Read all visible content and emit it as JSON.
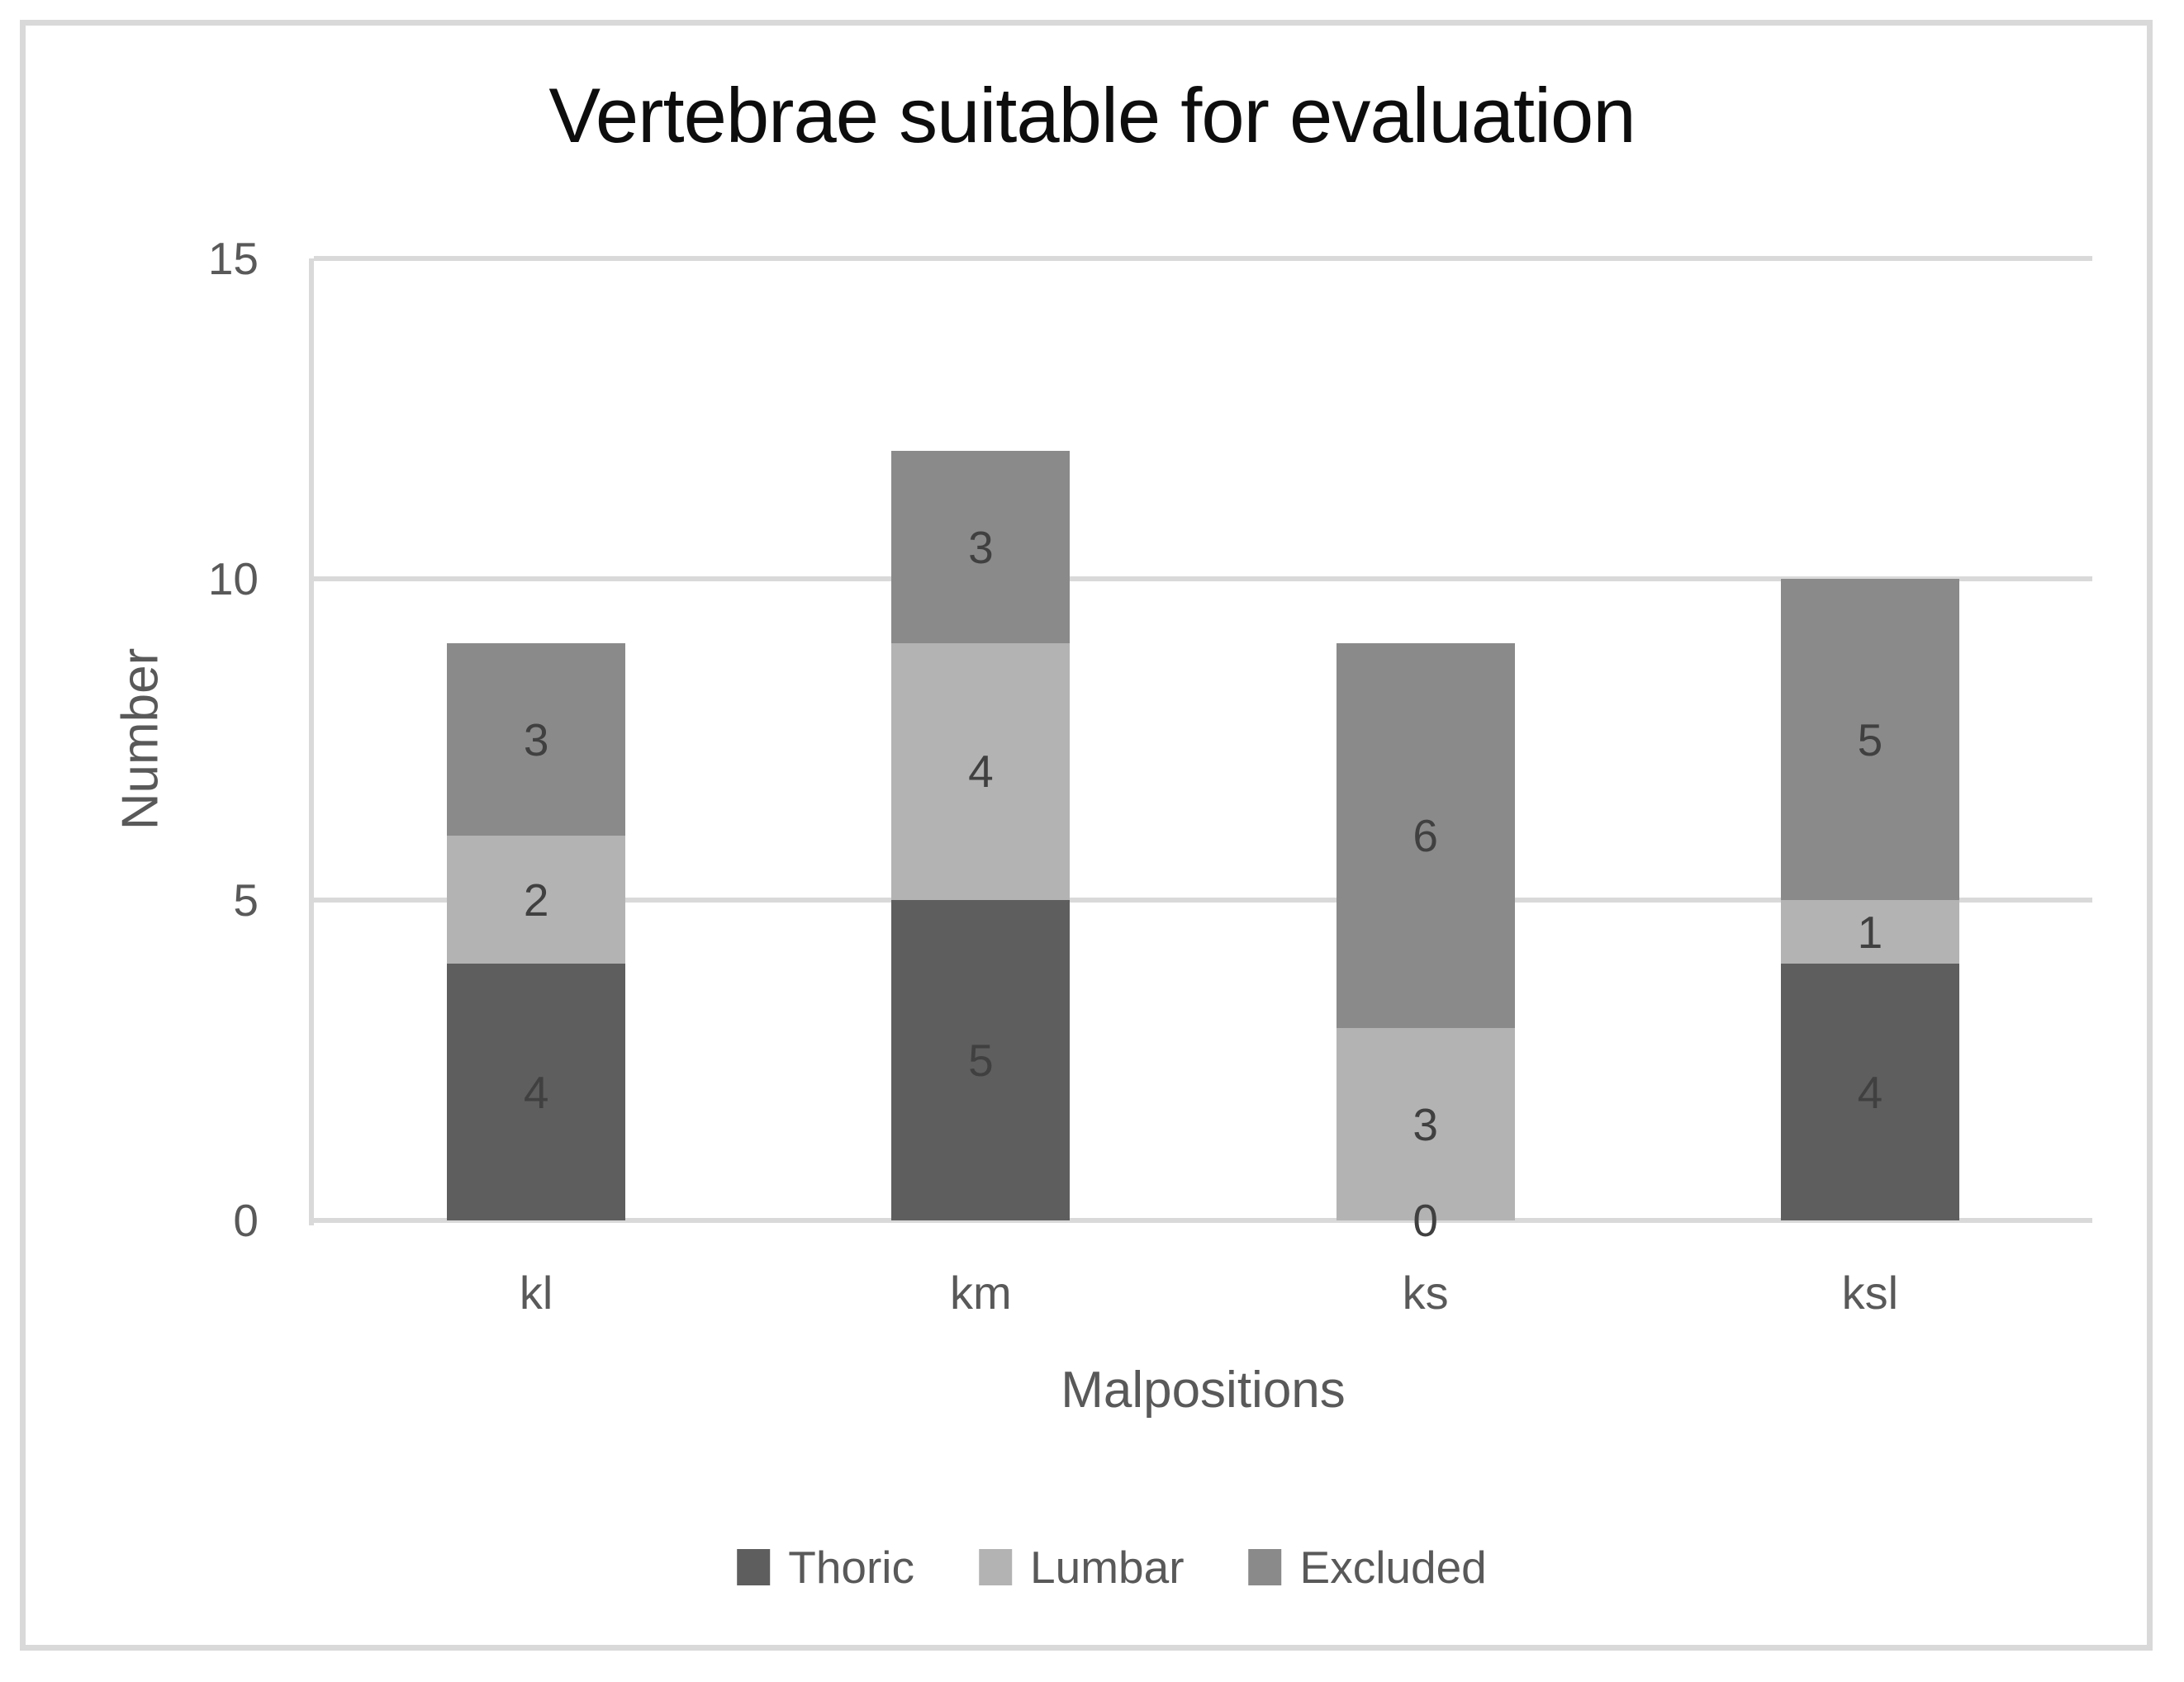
{
  "chart_data": {
    "type": "bar",
    "stacked": true,
    "title": "Vertebrae suitable for evaluation",
    "xlabel": "Malpositions",
    "ylabel": "Number",
    "categories": [
      "kl",
      "km",
      "ks",
      "ksl"
    ],
    "series": [
      {
        "name": "Thoric",
        "color": "#5e5e5e",
        "values": [
          4,
          5,
          0,
          4
        ]
      },
      {
        "name": "Lumbar",
        "color": "#b3b3b3",
        "values": [
          2,
          4,
          3,
          1
        ]
      },
      {
        "name": "Excluded",
        "color": "#8a8a8a",
        "values": [
          3,
          3,
          6,
          5
        ]
      }
    ],
    "totals": [
      9,
      12,
      9,
      10
    ],
    "ylim": [
      0,
      15
    ],
    "yticks": [
      0,
      5,
      10,
      15
    ],
    "grid": true,
    "data_labels": true,
    "legend_position": "bottom"
  },
  "colors": {
    "gridline": "#d9d9d9",
    "frame_border": "#d9d9d9",
    "axis_text": "#595959",
    "data_label_text": "#404040",
    "title_text": "#0d0d0d",
    "background": "#ffffff"
  }
}
